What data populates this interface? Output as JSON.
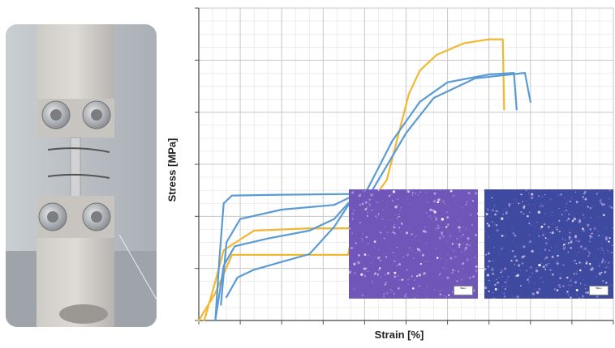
{
  "chart_data": {
    "type": "line",
    "xlabel": "Strain [%]",
    "ylabel": "Stress [MPa]",
    "grid": true,
    "tick_labels_shown": false,
    "series": [
      {
        "color": "#f2b731",
        "points": [
          [
            0.0,
            0.0
          ],
          [
            0.6,
            0.35
          ],
          [
            1.2,
            0.84
          ],
          [
            2.6,
            0.84
          ],
          [
            4.5,
            0.84
          ],
          [
            5.4,
            0.84
          ],
          [
            5.6,
            1.2
          ],
          [
            6.0,
            1.4
          ],
          [
            6.8,
            1.8
          ],
          [
            7.6,
            2.9
          ],
          [
            8.0,
            3.2
          ],
          [
            8.6,
            3.4
          ],
          [
            9.6,
            3.55
          ],
          [
            10.5,
            3.6
          ],
          [
            11.0,
            3.6
          ],
          [
            11.05,
            2.7
          ]
        ]
      },
      {
        "color": "#f2b731",
        "points": [
          [
            0.2,
            0.0
          ],
          [
            0.6,
            0.5
          ],
          [
            0.9,
            0.9
          ],
          [
            2.0,
            1.15
          ],
          [
            4.0,
            1.18
          ],
          [
            5.8,
            1.18
          ]
        ]
      },
      {
        "color": "#5b9bd5",
        "points": [
          [
            0.6,
            0.0
          ],
          [
            0.75,
            0.8
          ],
          [
            0.9,
            1.5
          ],
          [
            1.2,
            1.6
          ],
          [
            3.0,
            1.61
          ],
          [
            5.5,
            1.62
          ],
          [
            6.0,
            1.61
          ],
          [
            7.0,
            2.3
          ],
          [
            8.0,
            2.8
          ],
          [
            9.0,
            3.05
          ],
          [
            10.5,
            3.15
          ],
          [
            11.4,
            3.17
          ],
          [
            11.5,
            2.7
          ]
        ]
      },
      {
        "color": "#5b9bd5",
        "points": [
          [
            0.6,
            0.0
          ],
          [
            0.9,
            0.7
          ],
          [
            1.3,
            0.95
          ],
          [
            2.5,
            1.05
          ],
          [
            4.0,
            1.15
          ],
          [
            4.9,
            1.3
          ],
          [
            5.4,
            1.5
          ],
          [
            5.6,
            1.55
          ]
        ]
      },
      {
        "color": "#5b9bd5",
        "points": [
          [
            1.0,
            0.3
          ],
          [
            1.4,
            0.55
          ],
          [
            2.0,
            0.65
          ],
          [
            3.0,
            0.75
          ],
          [
            4.0,
            0.85
          ],
          [
            4.9,
            1.2
          ],
          [
            5.6,
            1.58
          ]
        ]
      },
      {
        "color": "#5b9bd5",
        "points": [
          [
            0.8,
            0.2
          ],
          [
            1.0,
            1.0
          ],
          [
            1.5,
            1.3
          ],
          [
            3.0,
            1.42
          ],
          [
            4.9,
            1.48
          ],
          [
            5.6,
            1.6
          ]
        ]
      },
      {
        "color": "#5b9bd5",
        "points": [
          [
            6.2,
            1.62
          ],
          [
            7.5,
            2.4
          ],
          [
            8.5,
            2.85
          ],
          [
            10.0,
            3.1
          ],
          [
            11.8,
            3.17
          ],
          [
            12.0,
            2.8
          ]
        ]
      }
    ],
    "xlim": [
      0,
      15
    ],
    "ylim": [
      0,
      4
    ]
  },
  "photo": {
    "description_icon": "tensile-test-specimen-in-grips"
  },
  "micrographs": [
    {
      "scale_label": "50µm"
    },
    {
      "scale_label": "50µm"
    }
  ]
}
